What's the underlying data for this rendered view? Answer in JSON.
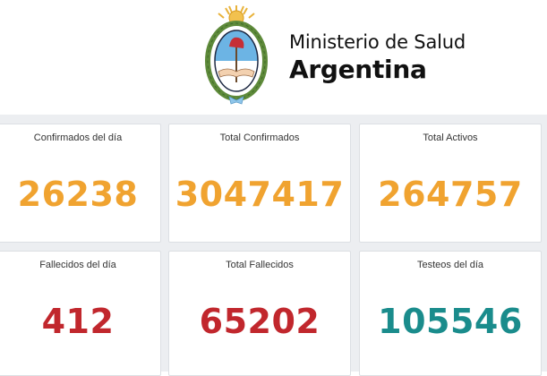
{
  "header": {
    "ministry": "Ministerio de Salud",
    "country": "Argentina"
  },
  "cards": [
    {
      "label": "Confirmados del día",
      "value": "26238",
      "color": "#f0a330"
    },
    {
      "label": "Total Confirmados",
      "value": "3047417",
      "color": "#f0a330"
    },
    {
      "label": "Total Activos",
      "value": "264757",
      "color": "#f0a330"
    },
    {
      "label": "Fallecidos del día",
      "value": "412",
      "color": "#c1272d"
    },
    {
      "label": "Total Fallecidos",
      "value": "65202",
      "color": "#c1272d"
    },
    {
      "label": "Testeos del día",
      "value": "105546",
      "color": "#1a8c8c"
    }
  ],
  "colors": {
    "background": "#eceef1",
    "card": "#ffffff",
    "orange": "#f0a330",
    "red": "#c1272d",
    "teal": "#1a8c8c"
  },
  "icons": {
    "emblem": "coat-of-arms-of-argentina-icon"
  }
}
